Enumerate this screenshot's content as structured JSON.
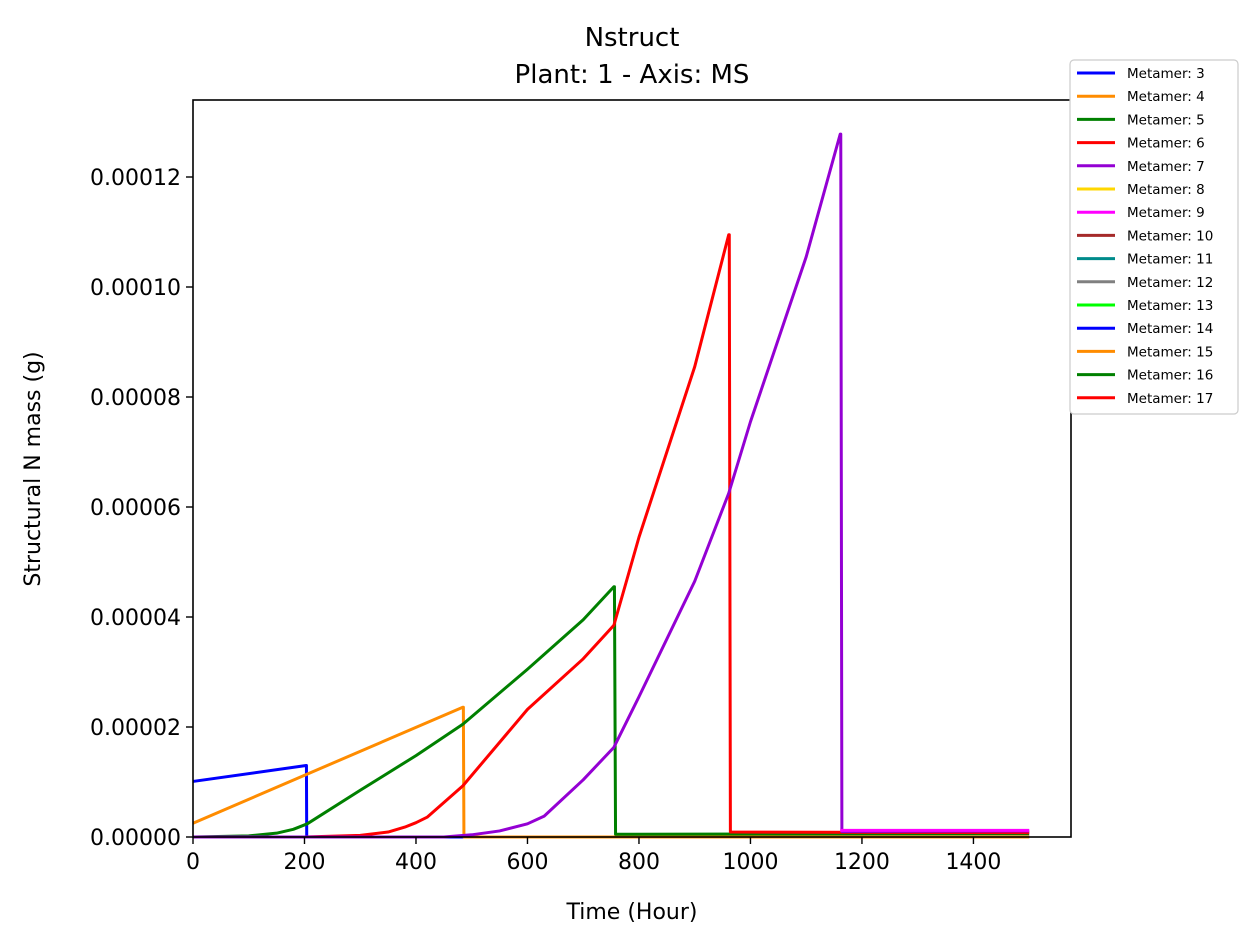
{
  "chart_data": {
    "type": "line",
    "title": "Nstruct",
    "subtitle": "Plant: 1 - Axis: MS",
    "xlabel": "Time (Hour)",
    "ylabel": "Structural N mass (g)",
    "xlim": [
      0,
      1575
    ],
    "ylim": [
      0,
      0.000134
    ],
    "xticks": [
      0,
      200,
      400,
      600,
      800,
      1000,
      1200,
      1400
    ],
    "xtick_labels": [
      "0",
      "200",
      "400",
      "600",
      "800",
      "1000",
      "1200",
      "1400"
    ],
    "yticks": [
      0,
      2e-05,
      4e-05,
      6e-05,
      8e-05,
      0.0001,
      0.00012
    ],
    "ytick_labels": [
      "0.00000",
      "0.00002",
      "0.00004",
      "0.00006",
      "0.00008",
      "0.00010",
      "0.00012"
    ],
    "grid": false,
    "legend_position": "outside-top-right",
    "series": [
      {
        "name": "Metamer: 3",
        "color": "#0000ff",
        "x": [
          0,
          203,
          203.5,
          204,
          1500
        ],
        "y": [
          1.01e-05,
          1.3e-05,
          1.3e-05,
          0,
          0
        ]
      },
      {
        "name": "Metamer: 4",
        "color": "#ff8c00",
        "x": [
          0,
          484,
          485,
          486,
          1500
        ],
        "y": [
          2.5e-06,
          2.36e-05,
          2.36e-05,
          0,
          0
        ]
      },
      {
        "name": "Metamer: 5",
        "color": "#008000",
        "x": [
          0,
          100,
          150,
          180,
          205,
          300,
          400,
          484,
          600,
          700,
          755,
          756,
          758,
          1500
        ],
        "y": [
          0,
          2e-07,
          7e-07,
          1.4e-06,
          2.4e-06,
          8.5e-06,
          1.48e-05,
          2.05e-05,
          3.05e-05,
          3.95e-05,
          4.55e-05,
          4.55e-05,
          5e-07,
          6e-07
        ]
      },
      {
        "name": "Metamer: 6",
        "color": "#ff0000",
        "x": [
          0,
          200,
          300,
          350,
          380,
          400,
          420,
          484,
          600,
          700,
          755,
          800,
          900,
          961,
          962,
          964,
          1500
        ],
        "y": [
          0,
          0,
          3e-07,
          9e-07,
          1.8e-06,
          2.6e-06,
          3.6e-06,
          9.3e-06,
          2.32e-05,
          3.24e-05,
          3.85e-05,
          5.45e-05,
          8.55e-05,
          0.0001095,
          0.0001095,
          9e-07,
          8e-07
        ]
      },
      {
        "name": "Metamer: 7",
        "color": "#9400d3",
        "x": [
          0,
          450,
          500,
          550,
          600,
          630,
          700,
          755,
          800,
          900,
          961,
          1000,
          1100,
          1161,
          1162,
          1164,
          1500
        ],
        "y": [
          0,
          0,
          4e-07,
          1.1e-06,
          2.4e-06,
          3.8e-06,
          1.04e-05,
          1.63e-05,
          2.55e-05,
          4.65e-05,
          6.25e-05,
          7.55e-05,
          0.0001055,
          0.0001278,
          0.0001278,
          1e-06,
          1.1e-06
        ]
      },
      {
        "name": "Metamer: 8",
        "color": "#ffd700",
        "x": [],
        "y": []
      },
      {
        "name": "Metamer: 9",
        "color": "#ff00ff",
        "x": [
          1161,
          1500
        ],
        "y": [
          1.2e-06,
          1.2e-06
        ]
      },
      {
        "name": "Metamer: 10",
        "color": "#a52a2a",
        "x": [],
        "y": []
      },
      {
        "name": "Metamer: 11",
        "color": "#008b8b",
        "x": [],
        "y": []
      },
      {
        "name": "Metamer: 12",
        "color": "#808080",
        "x": [],
        "y": []
      },
      {
        "name": "Metamer: 13",
        "color": "#00ff00",
        "x": [],
        "y": []
      },
      {
        "name": "Metamer: 14",
        "color": "#0000ff",
        "x": [],
        "y": []
      },
      {
        "name": "Metamer: 15",
        "color": "#ff8c00",
        "x": [],
        "y": []
      },
      {
        "name": "Metamer: 16",
        "color": "#008000",
        "x": [],
        "y": []
      },
      {
        "name": "Metamer: 17",
        "color": "#ff0000",
        "x": [],
        "y": []
      }
    ]
  }
}
